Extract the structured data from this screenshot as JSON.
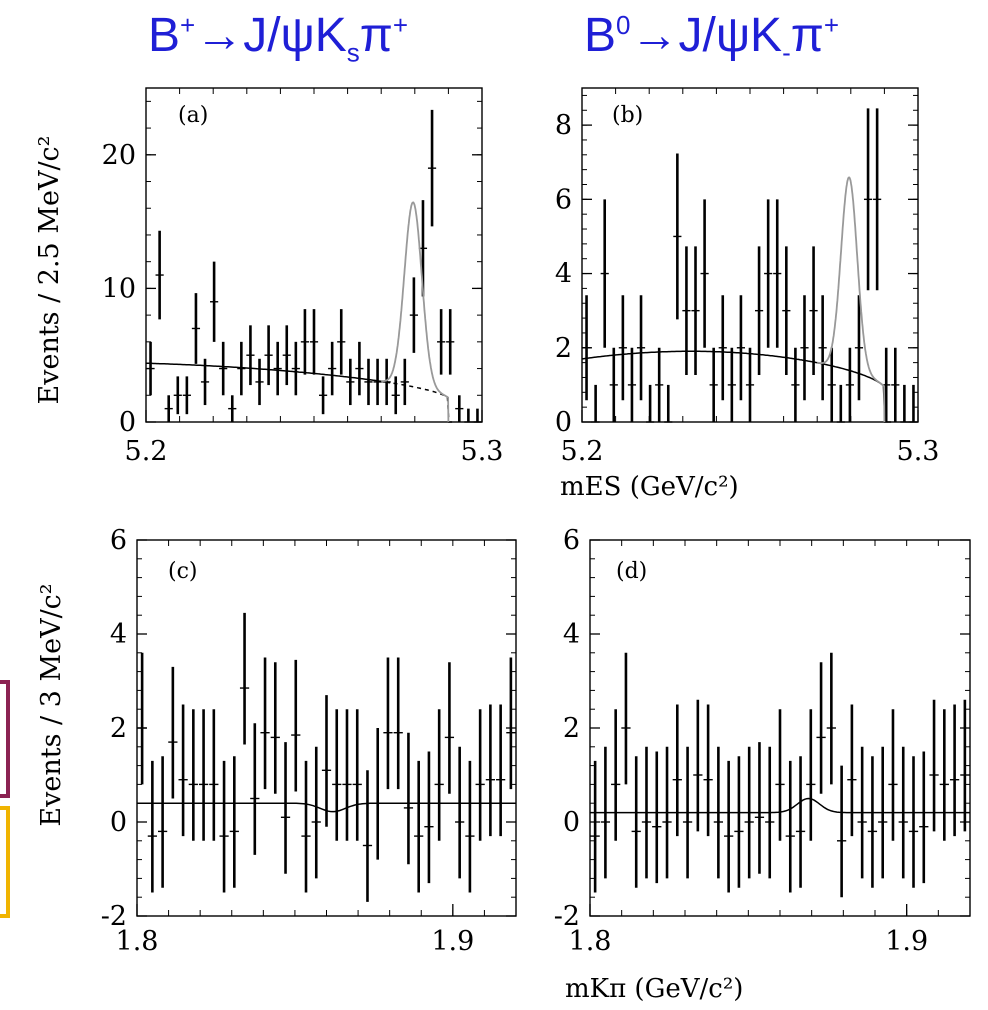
{
  "titles": {
    "left": {
      "base": "B",
      "sup1": "+",
      "arrow": "→",
      "j": "J/ψK",
      "sub": "s",
      "pi": "π",
      "sup2": "+"
    },
    "right": {
      "base": "B",
      "sup1": "0",
      "arrow": "→",
      "j": "J/ψK",
      "sub": "-",
      "pi": "π",
      "sup2": "+"
    }
  },
  "axes": {
    "top_ylabel": "Events / 2.5 MeV/c²",
    "bottom_ylabel": "Events / 3 MeV/c²",
    "top_xlabel": "mES (GeV/c²)",
    "bottom_xlabel": "mKπ (GeV/c²)"
  },
  "chart_data": [
    {
      "type": "scatter",
      "panel_label": "(a)",
      "xlim": [
        5.2,
        5.3
      ],
      "ylim": [
        0,
        25
      ],
      "xticks": [
        5.2,
        5.3
      ],
      "yticks": [
        0,
        10,
        20
      ],
      "y": [
        4,
        11,
        1,
        2,
        2,
        7,
        3,
        9,
        4,
        1,
        4,
        5,
        3,
        5,
        4,
        5,
        4,
        6,
        6,
        2,
        4,
        6,
        3,
        4,
        3,
        3,
        3,
        2,
        3,
        8,
        13,
        19,
        6,
        6,
        1,
        0,
        0
      ],
      "bg_y": [
        4.4,
        2.9,
        0
      ],
      "signal": {
        "mean": 5.2795,
        "sigma": 0.0026,
        "amp": 13.8
      }
    },
    {
      "type": "scatter",
      "panel_label": "(b)",
      "xlim": [
        5.2,
        5.3
      ],
      "ylim": [
        0,
        9
      ],
      "xticks": [
        5.2,
        5.3
      ],
      "yticks": [
        0,
        2,
        4,
        6,
        8
      ],
      "y": [
        2,
        0,
        4,
        1,
        2,
        1,
        2,
        0,
        1,
        0,
        5,
        3,
        3,
        4,
        1,
        2,
        1,
        2,
        1,
        3,
        4,
        4,
        3,
        1,
        2,
        3,
        2,
        1,
        0,
        1,
        2,
        6,
        6,
        1,
        1,
        0,
        0
      ],
      "bg_y": [
        1.7,
        2.05,
        0
      ],
      "signal": {
        "mean": 5.2795,
        "sigma": 0.0024,
        "amp": 5.2
      }
    },
    {
      "type": "scatter",
      "panel_label": "(c)",
      "xlim": [
        1.8,
        1.92
      ],
      "ylim": [
        -2,
        6
      ],
      "xticks": [
        1.8,
        1.9
      ],
      "yticks": [
        -2,
        0,
        2,
        4,
        6
      ],
      "y": [
        2,
        -0.3,
        -0.2,
        1.7,
        0.9,
        0.8,
        0.8,
        0.8,
        -0.3,
        -0.2,
        2.85,
        0.5,
        1.9,
        1.8,
        0.1,
        1.85,
        -0.3,
        0,
        1.1,
        0.8,
        0.8,
        0.8,
        -0.5,
        0.4,
        1.9,
        1.9,
        0.3,
        -0.3,
        -0.1,
        0.8,
        1.8,
        0,
        -0.3,
        0.8,
        0.9,
        0.9,
        1.9
      ],
      "fit_level": 0.4,
      "fit_dip": {
        "x": 1.862,
        "depth": 0.18,
        "width": 0.004
      }
    },
    {
      "type": "scatter",
      "panel_label": "(d)",
      "xlim": [
        1.8,
        1.92
      ],
      "ylim": [
        -2,
        6
      ],
      "xticks": [
        1.8,
        1.9
      ],
      "yticks": [
        -2,
        0,
        2,
        4,
        6
      ],
      "y": [
        -0.3,
        0,
        0.8,
        2,
        -0.2,
        0,
        -0.1,
        0,
        0.9,
        0,
        1,
        0.9,
        0,
        -0.3,
        -0.2,
        0,
        0.1,
        0,
        0.8,
        -0.3,
        -0.2,
        0.8,
        1.8,
        2,
        -0.4,
        0.9,
        0,
        -0.2,
        0,
        0.8,
        0,
        -0.2,
        -0.1,
        1,
        0.8,
        0.9,
        1
      ],
      "fit_level": 0.2,
      "fit_bump": {
        "x": 1.869,
        "height": 0.3,
        "width": 0.0035
      }
    }
  ]
}
